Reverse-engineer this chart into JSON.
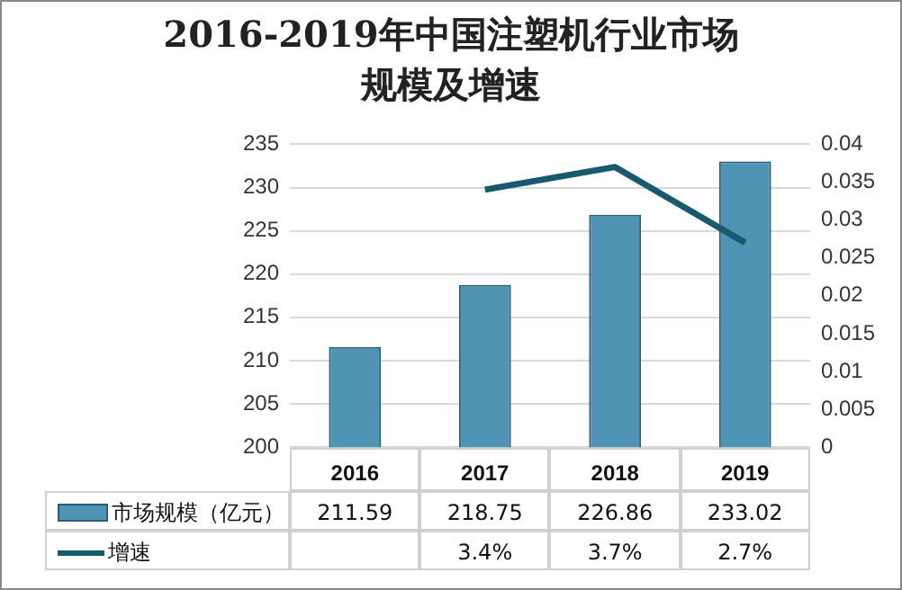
{
  "chart_data": {
    "type": "bar",
    "title": "2016-2019年中国注塑机行业市场规模及增速",
    "categories": [
      "2016",
      "2017",
      "2018",
      "2019"
    ],
    "series": [
      {
        "name": "市场规模（亿元）",
        "color": "#4f93b5",
        "values": [
          211.59,
          218.75,
          226.86,
          233.02
        ],
        "value_labels": [
          "211.59",
          "218.75",
          "226.86",
          "233.02"
        ]
      },
      {
        "name": "增速",
        "type": "line",
        "axis": "y2",
        "color": "#175a6e",
        "values": [
          null,
          0.034,
          0.037,
          0.027
        ],
        "value_labels": [
          null,
          "3.4%",
          "3.7%",
          "2.7%"
        ]
      }
    ],
    "ylim": [
      200,
      235
    ],
    "yticks": [
      200,
      205,
      210,
      215,
      220,
      225,
      230,
      235
    ],
    "y2lim": [
      0,
      0.04
    ],
    "y2ticks": [
      0,
      0.005,
      0.01,
      0.015,
      0.02,
      0.025,
      0.03,
      0.035,
      0.04
    ],
    "grid": "y",
    "legend": "bottom",
    "marker": "none"
  }
}
